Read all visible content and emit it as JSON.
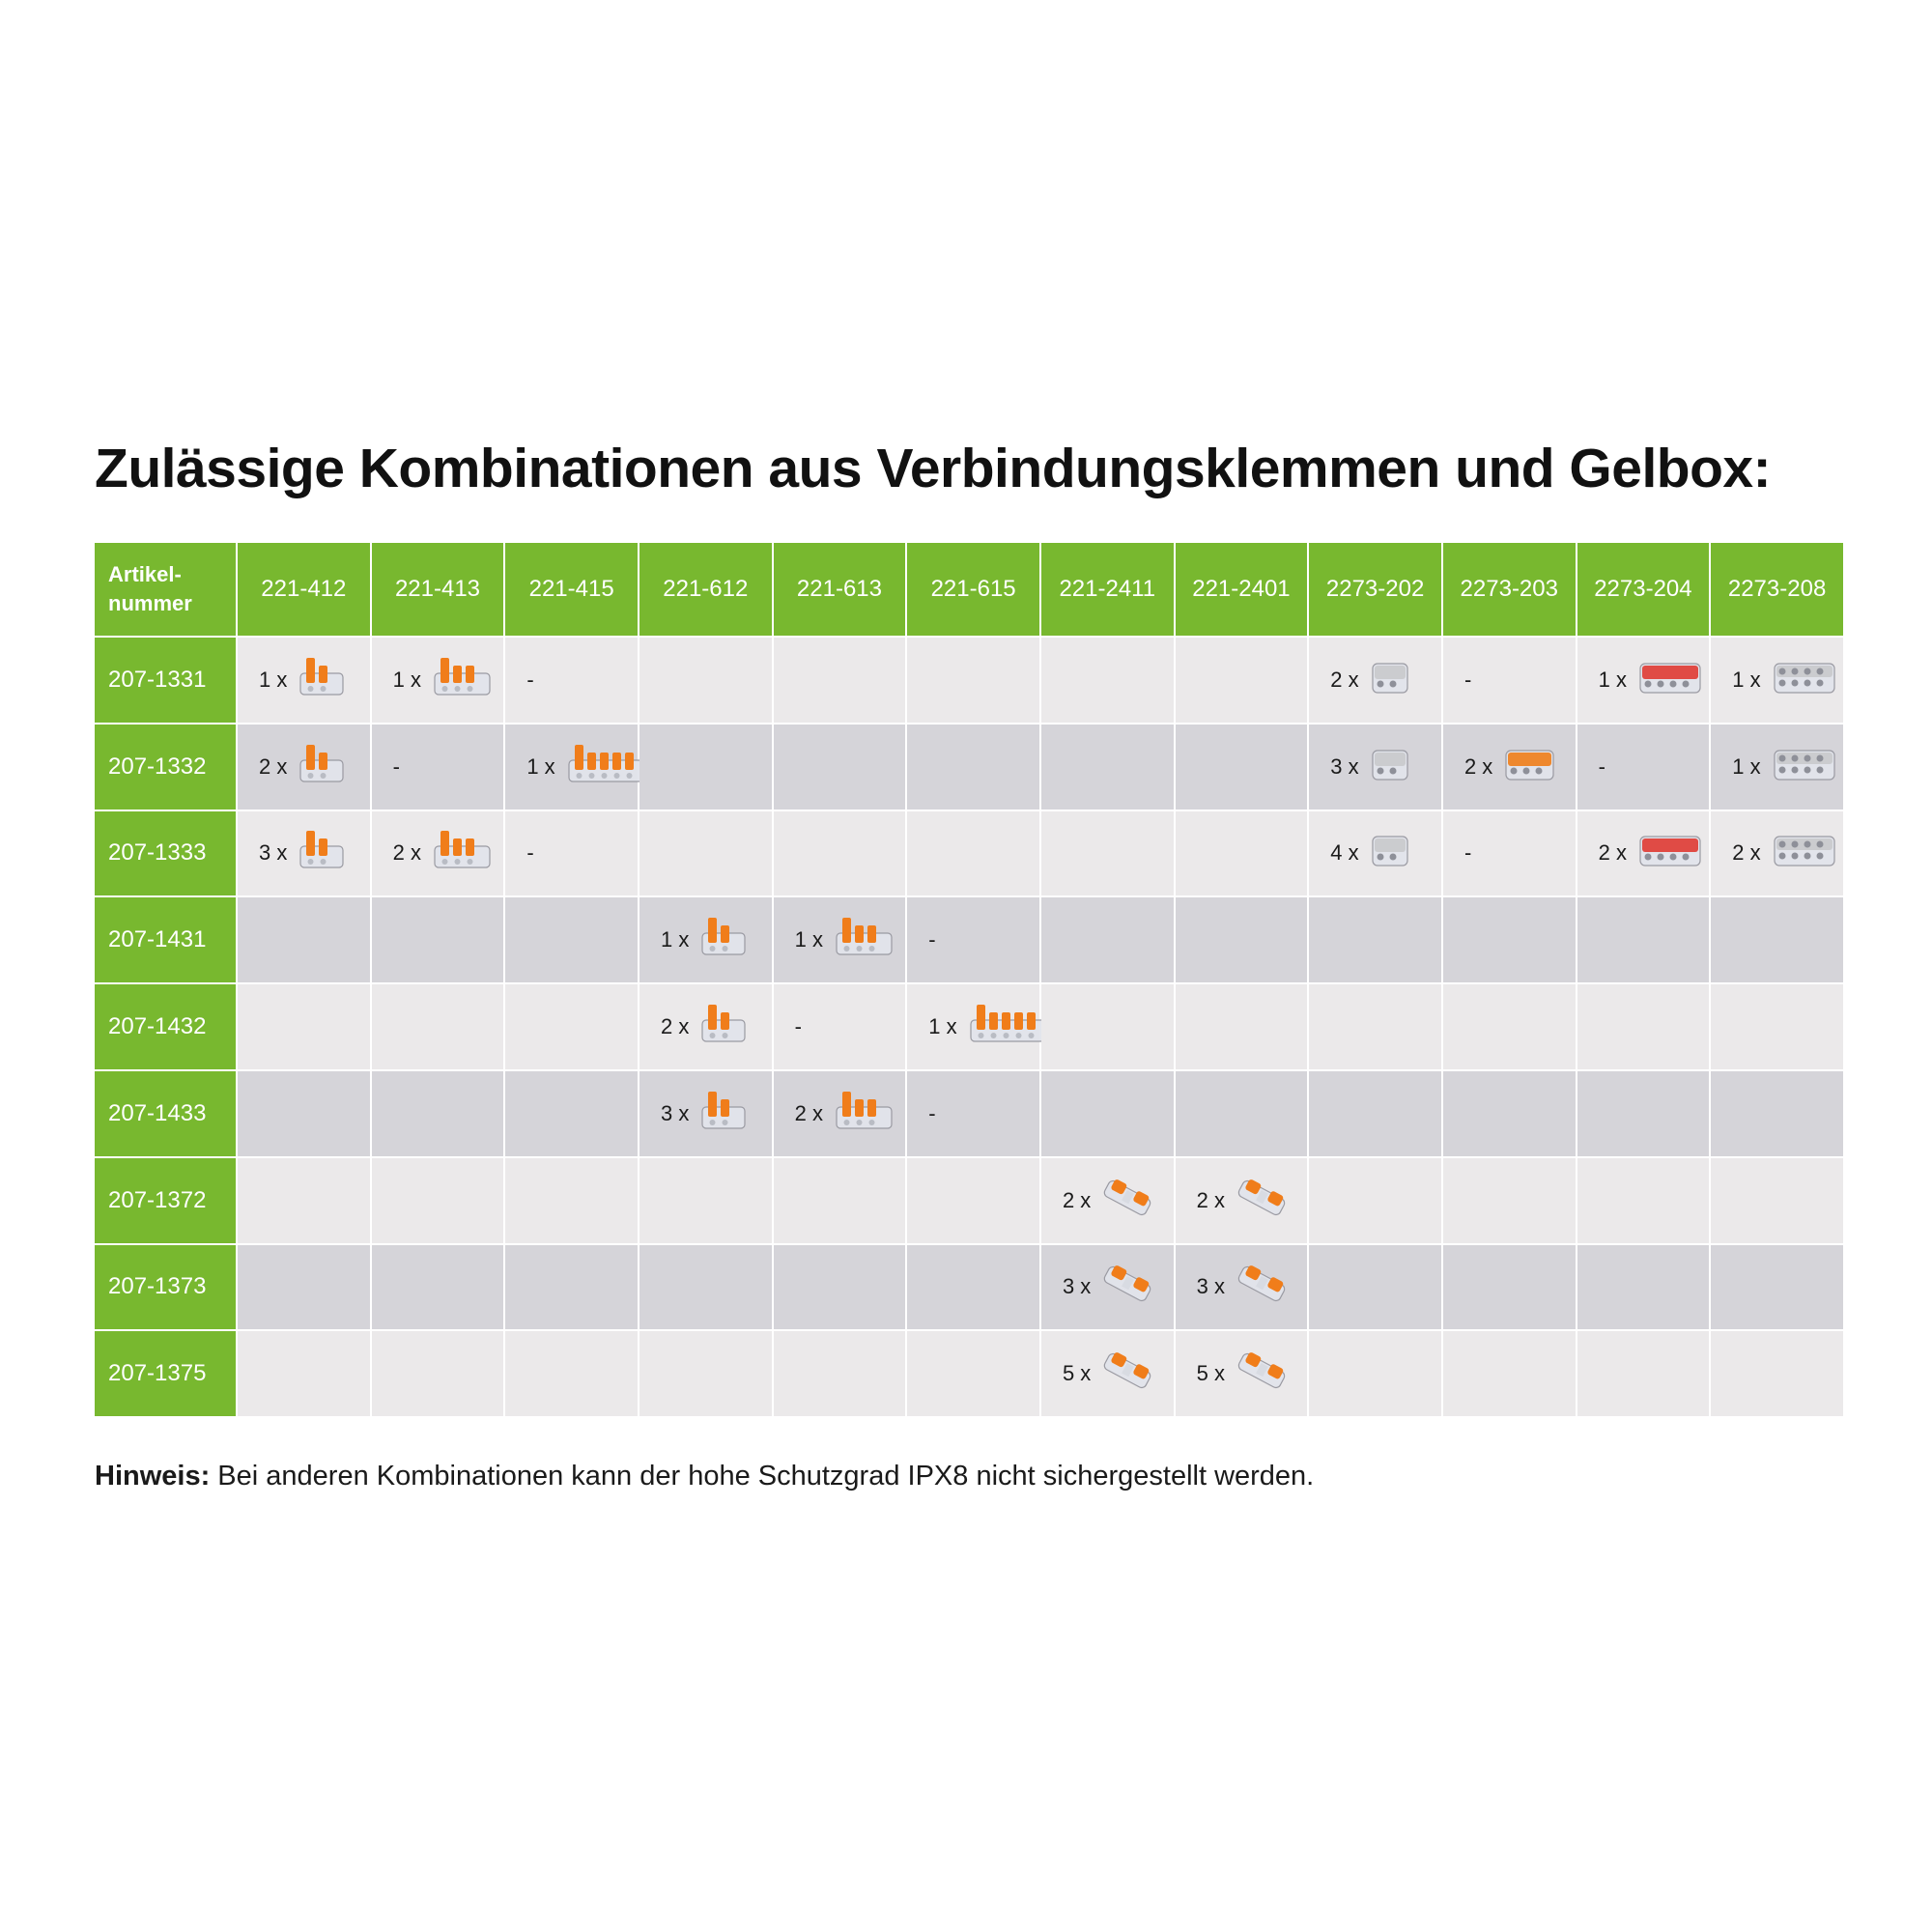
{
  "title": "Zulässige Kombinationen aus Verbindungsklemmen und Gelbox:",
  "table": {
    "corner_label": "Artikel-\nnummer",
    "columns": [
      "221-412",
      "221-413",
      "221-415",
      "221-612",
      "221-613",
      "221-615",
      "221-2411",
      "221-2401",
      "2273-202",
      "2273-203",
      "2273-204",
      "2273-208"
    ],
    "rows": [
      {
        "label": "207-1331",
        "cells": [
          {
            "qty": "1 x",
            "icon": "orange-lever-connector-2-icon"
          },
          {
            "qty": "1 x",
            "icon": "orange-lever-connector-3-icon"
          },
          {
            "qty": "-"
          },
          {},
          {},
          {},
          {},
          {},
          {
            "qty": "2 x",
            "icon": "grey-pushwire-connector-2-icon"
          },
          {
            "qty": "-"
          },
          {
            "qty": "1 x",
            "icon": "red-pushwire-connector-4-icon"
          },
          {
            "qty": "1 x",
            "icon": "grey-pushwire-connector-8-icon"
          }
        ]
      },
      {
        "label": "207-1332",
        "cells": [
          {
            "qty": "2 x",
            "icon": "orange-lever-connector-2-icon"
          },
          {
            "qty": "-"
          },
          {
            "qty": "1 x",
            "icon": "orange-lever-connector-5-icon"
          },
          {},
          {},
          {},
          {},
          {},
          {
            "qty": "3 x",
            "icon": "grey-pushwire-connector-2-icon"
          },
          {
            "qty": "2 x",
            "icon": "orange-pushwire-connector-3-icon"
          },
          {
            "qty": "-"
          },
          {
            "qty": "1 x",
            "icon": "grey-pushwire-connector-8-icon"
          }
        ]
      },
      {
        "label": "207-1333",
        "cells": [
          {
            "qty": "3 x",
            "icon": "orange-lever-connector-2-icon"
          },
          {
            "qty": "2 x",
            "icon": "orange-lever-connector-3-icon"
          },
          {
            "qty": "-"
          },
          {},
          {},
          {},
          {},
          {},
          {
            "qty": "4 x",
            "icon": "grey-pushwire-connector-2-icon"
          },
          {
            "qty": "-"
          },
          {
            "qty": "2 x",
            "icon": "red-pushwire-connector-4-icon"
          },
          {
            "qty": "2 x",
            "icon": "grey-pushwire-connector-8-icon"
          }
        ]
      },
      {
        "label": "207-1431",
        "cells": [
          {},
          {},
          {},
          {
            "qty": "1 x",
            "icon": "orange-lever-connector-612-icon"
          },
          {
            "qty": "1 x",
            "icon": "orange-lever-connector-613-icon"
          },
          {
            "qty": "-"
          },
          {},
          {},
          {},
          {},
          {},
          {}
        ]
      },
      {
        "label": "207-1432",
        "cells": [
          {},
          {},
          {},
          {
            "qty": "2 x",
            "icon": "orange-lever-connector-612-icon"
          },
          {
            "qty": "-"
          },
          {
            "qty": "1 x",
            "icon": "orange-lever-connector-615-icon"
          },
          {},
          {},
          {},
          {},
          {},
          {}
        ]
      },
      {
        "label": "207-1433",
        "cells": [
          {},
          {},
          {},
          {
            "qty": "3 x",
            "icon": "orange-lever-connector-612-icon"
          },
          {
            "qty": "2 x",
            "icon": "orange-lever-connector-613-icon"
          },
          {
            "qty": "-"
          },
          {},
          {},
          {},
          {},
          {},
          {}
        ]
      },
      {
        "label": "207-1372",
        "cells": [
          {},
          {},
          {},
          {},
          {},
          {},
          {
            "qty": "2 x",
            "icon": "inline-splice-connector-icon"
          },
          {
            "qty": "2 x",
            "icon": "inline-splice-connector-icon"
          },
          {},
          {},
          {},
          {}
        ]
      },
      {
        "label": "207-1373",
        "cells": [
          {},
          {},
          {},
          {},
          {},
          {},
          {
            "qty": "3 x",
            "icon": "inline-splice-connector-icon"
          },
          {
            "qty": "3 x",
            "icon": "inline-splice-connector-icon"
          },
          {},
          {},
          {},
          {}
        ]
      },
      {
        "label": "207-1375",
        "cells": [
          {},
          {},
          {},
          {},
          {},
          {},
          {
            "qty": "5 x",
            "icon": "inline-splice-connector-icon"
          },
          {
            "qty": "5 x",
            "icon": "inline-splice-connector-icon"
          },
          {},
          {},
          {},
          {}
        ]
      }
    ]
  },
  "note": {
    "label": "Hinweis:",
    "text": " Bei anderen Kombinationen kann der hohe Schutzgrad IPX8 nicht sichergestellt werden."
  },
  "colors": {
    "header_green": "#78b82f",
    "row_light": "#ebe9ea",
    "row_dark": "#d5d4d9",
    "connector_orange": "#f07d1a",
    "connector_red": "#e03a33",
    "connector_grey": "#c9c9cc"
  }
}
